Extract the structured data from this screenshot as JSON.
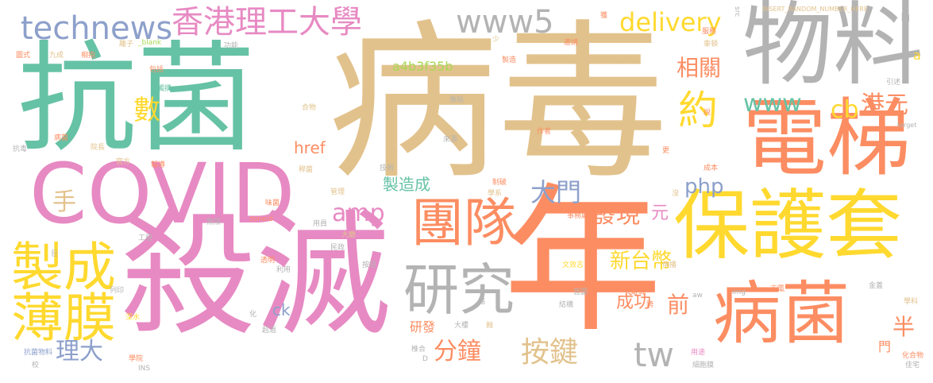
{
  "palette": {
    "tan": "#e2c28c",
    "orange": "#fc8d62",
    "pink": "#e78ac3",
    "green": "#66c2a5",
    "yellow": "#ffd92f",
    "blue": "#8da0cb",
    "grey": "#b3b3b3",
    "lime": "#a6d854"
  },
  "words": [
    {
      "text": "病毒",
      "color": "tan"
    },
    {
      "text": "抗菌",
      "color": "green"
    },
    {
      "text": "殺滅",
      "color": "pink"
    },
    {
      "text": "年",
      "color": "orange"
    },
    {
      "text": "COVID",
      "color": "pink"
    },
    {
      "text": "物料",
      "color": "grey"
    },
    {
      "text": "電梯",
      "color": "orange"
    },
    {
      "text": "保護套",
      "color": "yellow"
    },
    {
      "text": "病菌",
      "color": "orange"
    },
    {
      "text": "團隊",
      "color": "orange"
    },
    {
      "text": "研究",
      "color": "grey"
    },
    {
      "text": "製成",
      "color": "yellow"
    },
    {
      "text": "薄膜",
      "color": "yellow"
    },
    {
      "text": "technews",
      "color": "blue"
    },
    {
      "text": "香港理工大學",
      "color": "pink"
    },
    {
      "text": "www5",
      "color": "grey"
    },
    {
      "text": "delivery",
      "color": "yellow"
    },
    {
      "text": "a4b3f35b",
      "color": "lime"
    },
    {
      "text": "約",
      "color": "yellow"
    },
    {
      "text": "www",
      "color": "green"
    },
    {
      "text": "cb",
      "color": "yellow"
    },
    {
      "text": "港元",
      "color": "orange"
    },
    {
      "text": "相關",
      "color": "orange"
    },
    {
      "text": "數",
      "color": "yellow"
    },
    {
      "text": "手",
      "color": "tan"
    },
    {
      "text": "amp",
      "color": "pink"
    },
    {
      "text": "大門",
      "color": "blue"
    },
    {
      "text": "php",
      "color": "blue"
    },
    {
      "text": "發現",
      "color": "orange"
    },
    {
      "text": "元",
      "color": "pink"
    },
    {
      "text": "新台幣",
      "color": "yellow"
    },
    {
      "text": "成功",
      "color": "orange"
    },
    {
      "text": "前",
      "color": "orange"
    },
    {
      "text": "半",
      "color": "orange"
    },
    {
      "text": "按鍵",
      "color": "tan"
    },
    {
      "text": "分鐘",
      "color": "orange"
    },
    {
      "text": "tw",
      "color": "grey"
    },
    {
      "text": "理大",
      "color": "blue"
    },
    {
      "text": "製造成",
      "color": "green"
    },
    {
      "text": "href",
      "color": "orange"
    },
    {
      "text": "ck",
      "color": "blue"
    },
    {
      "text": "研發",
      "color": "orange"
    },
    {
      "text": "門",
      "color": "orange"
    },
    {
      "text": "n",
      "color": "grey"
    },
    {
      "text": "a",
      "color": "yellow"
    },
    {
      "text": "INSERT_RANDOM_NUMBER_HERE",
      "color": "tan"
    },
    {
      "text": "src",
      "color": "grey"
    },
    {
      "text": "獲",
      "color": "orange"
    },
    {
      "text": "服務",
      "color": "orange"
    },
    {
      "text": "邀請",
      "color": "orange"
    },
    {
      "text": "少",
      "color": "tan"
    },
    {
      "text": "_blank",
      "color": "lime"
    },
    {
      "text": "功能",
      "color": "grey"
    },
    {
      "text": "製造",
      "color": "orange"
    },
    {
      "text": "理大學",
      "color": "tan"
    },
    {
      "text": "車頓",
      "color": "tan"
    },
    {
      "text": "引述",
      "color": "grey"
    },
    {
      "text": "target",
      "color": "grey"
    },
    {
      "text": "圖式",
      "color": "orange"
    },
    {
      "text": "九成",
      "color": "tan"
    },
    {
      "text": "相指",
      "color": "orange"
    },
    {
      "text": "離子",
      "color": "tan"
    },
    {
      "text": "包括",
      "color": "orange"
    },
    {
      "text": "觸摸",
      "color": "green"
    },
    {
      "text": "合物",
      "color": "tan"
    },
    {
      "text": "張貼",
      "color": "grey"
    },
    {
      "text": "說",
      "color": "orange"
    },
    {
      "text": "抗毒",
      "color": "grey"
    },
    {
      "text": "病菌",
      "color": "orange"
    },
    {
      "text": "院長",
      "color": "tan"
    },
    {
      "text": "官方",
      "color": "tan"
    },
    {
      "text": "報導",
      "color": "orange"
    },
    {
      "text": "稈菌",
      "color": "tan"
    },
    {
      "text": "作者",
      "color": "orange"
    },
    {
      "text": "來源",
      "color": "grey"
    },
    {
      "text": "技術",
      "color": "grey"
    },
    {
      "text": "更",
      "color": "orange"
    },
    {
      "text": "管理",
      "color": "tan"
    },
    {
      "text": "制破",
      "color": "orange"
    },
    {
      "text": "學系",
      "color": "tan"
    },
    {
      "text": "成本",
      "color": "orange"
    },
    {
      "text": "沒",
      "color": "tan"
    },
    {
      "text": "味菌",
      "color": "orange"
    },
    {
      "text": "事務處",
      "color": "orange"
    },
    {
      "text": "工程",
      "color": "grey"
    },
    {
      "text": "無限",
      "color": "grey"
    },
    {
      "text": "用員",
      "color": "grey"
    },
    {
      "text": "zoneid",
      "color": "orange"
    },
    {
      "text": "大廳",
      "color": "tan"
    },
    {
      "text": "透明",
      "color": "orange"
    },
    {
      "text": "民政",
      "color": "grey"
    },
    {
      "text": "利用",
      "color": "grey"
    },
    {
      "text": "按鈕",
      "color": "grey"
    },
    {
      "text": "文效志",
      "color": "yellow"
    },
    {
      "text": "傳播",
      "color": "tan"
    },
    {
      "text": "列印",
      "color": "grey"
    },
    {
      "text": "深水",
      "color": "yellow"
    },
    {
      "text": "超過",
      "color": "grey"
    },
    {
      "text": "抗菌物料",
      "color": "blue"
    },
    {
      "text": "學院",
      "color": "orange"
    },
    {
      "text": "INS",
      "color": "grey"
    },
    {
      "text": "椎合",
      "color": "grey"
    },
    {
      "text": "D",
      "color": "grey"
    },
    {
      "text": "大樓",
      "color": "grey"
    },
    {
      "text": "用途",
      "color": "pink"
    },
    {
      "text": "細胞膜",
      "color": "grey"
    },
    {
      "text": "化合物",
      "color": "orange"
    },
    {
      "text": "佳宅",
      "color": "grey"
    },
    {
      "text": "學科",
      "color": "tan"
    },
    {
      "text": "金蓋",
      "color": "grey"
    },
    {
      "text": "正電",
      "color": "orange"
    },
    {
      "text": "img",
      "color": "grey"
    },
    {
      "text": "aw",
      "color": "grey"
    },
    {
      "text": "首圖",
      "color": "grey"
    },
    {
      "text": "葡萄",
      "color": "orange"
    },
    {
      "text": "跨",
      "color": "orange"
    },
    {
      "text": "結構",
      "color": "grey"
    },
    {
      "text": "蝕",
      "color": "tan"
    },
    {
      "text": "協",
      "color": "grey"
    },
    {
      "text": "化",
      "color": "grey"
    },
    {
      "text": "校",
      "color": "grey"
    },
    {
      "text": "巨",
      "color": "grey"
    }
  ]
}
